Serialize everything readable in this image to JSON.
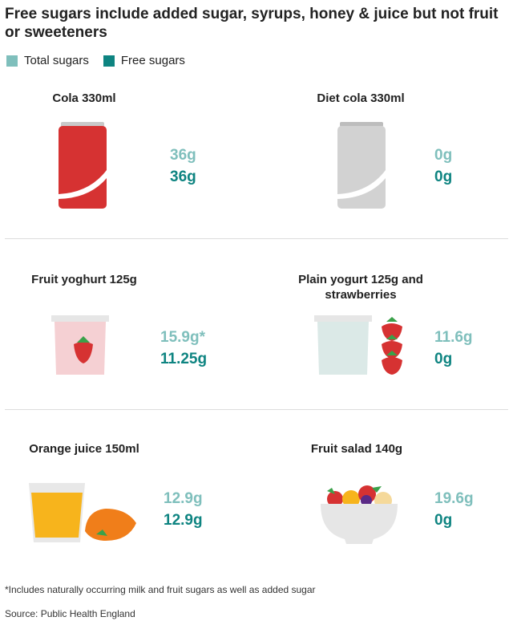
{
  "title": "Free sugars include added sugar, syrups, honey & juice but not fruit or sweeteners",
  "legend": [
    {
      "label": "Total sugars",
      "color": "#7fbfbc"
    },
    {
      "label": "Free sugars",
      "color": "#0e8481"
    }
  ],
  "items": [
    {
      "name": "Cola 330ml",
      "total": "36g",
      "free": "36g",
      "icon": "red-cola-can"
    },
    {
      "name": "Diet cola 330ml",
      "total": "0g",
      "free": "0g",
      "icon": "grey-cola-can"
    },
    {
      "name": "Fruit yoghurt 125g",
      "total": "15.9g*",
      "free": "11.25g",
      "icon": "fruit-yoghurt-pot"
    },
    {
      "name": "Plain yogurt 125g and strawberries",
      "total": "11.6g",
      "free": "0g",
      "icon": "plain-yogurt-strawberries"
    },
    {
      "name": "Orange juice 150ml",
      "total": "12.9g",
      "free": "12.9g",
      "icon": "orange-juice-glass"
    },
    {
      "name": "Fruit salad 140g",
      "total": "19.6g",
      "free": "0g",
      "icon": "fruit-salad-bowl"
    }
  ],
  "footnote": "*Includes naturally occurring milk and fruit sugars as well as added sugar",
  "source": "Source: Public Health England"
}
